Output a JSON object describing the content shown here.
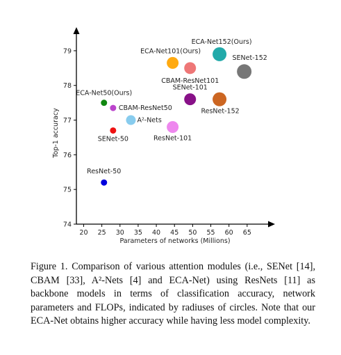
{
  "chart_data": {
    "type": "scatter",
    "title": "",
    "xlabel": "Parameters of networks (Millions)",
    "ylabel": "Top-1 accuracy",
    "xlim": [
      18,
      70
    ],
    "ylim": [
      74,
      79.5
    ],
    "xticks": [
      "20",
      "25",
      "30",
      "35",
      "40",
      "45",
      "50",
      "55",
      "60",
      "65"
    ],
    "yticks": [
      "74",
      "75",
      "76",
      "77",
      "78",
      "79"
    ],
    "bubble_size_meaning": "FLOPs",
    "points": [
      {
        "label": "ResNet-50",
        "x": 25.6,
        "y": 75.2,
        "color": "#0000dd",
        "r": 4.5,
        "lx": 0,
        "ly": -13,
        "anchor": "middle"
      },
      {
        "label": "SENet-50",
        "x": 28.1,
        "y": 76.7,
        "color": "#ee1111",
        "r": 4.5,
        "lx": 0,
        "ly": 15,
        "anchor": "middle"
      },
      {
        "label": "ECA-Net50(Ours)",
        "x": 25.6,
        "y": 77.5,
        "color": "#118811",
        "r": 4.5,
        "lx": 0,
        "ly": -11,
        "anchor": "middle"
      },
      {
        "label": "CBAM-ResNet50",
        "x": 28.1,
        "y": 77.35,
        "color": "#bb44cc",
        "r": 4.5,
        "lx": 8,
        "ly": 3,
        "anchor": "start"
      },
      {
        "label": "A²-Nets",
        "x": 33.0,
        "y": 77.0,
        "color": "#88ccee",
        "r": 7,
        "lx": 9,
        "ly": 3,
        "anchor": "start"
      },
      {
        "label": "ResNet-101",
        "x": 44.5,
        "y": 76.8,
        "color": "#ee88ee",
        "r": 8.5,
        "lx": 0,
        "ly": 19,
        "anchor": "middle"
      },
      {
        "label": "ECA-Net101(Ours)",
        "x": 44.5,
        "y": 78.65,
        "color": "#ffaa11",
        "r": 8.5,
        "lx": -3,
        "ly": -14,
        "anchor": "middle"
      },
      {
        "label": "CBAM-ResNet101",
        "x": 49.3,
        "y": 78.5,
        "color": "#ee7777",
        "r": 8.5,
        "lx": 0,
        "ly": 21,
        "anchor": "middle"
      },
      {
        "label": "SENet-101",
        "x": 49.3,
        "y": 77.6,
        "color": "#881188",
        "r": 8.5,
        "lx": 0,
        "ly": -14,
        "anchor": "middle"
      },
      {
        "label": "ECA-Net152(Ours)",
        "x": 57.4,
        "y": 78.9,
        "color": "#22aaaa",
        "r": 10,
        "lx": 3,
        "ly": -15,
        "anchor": "middle"
      },
      {
        "label": "SENet-152",
        "x": 64.2,
        "y": 78.4,
        "color": "#777777",
        "r": 10.5,
        "lx": 8,
        "ly": -17,
        "anchor": "middle"
      },
      {
        "label": "ResNet-152",
        "x": 57.4,
        "y": 77.6,
        "color": "#cc6622",
        "r": 10,
        "lx": 1,
        "ly": 20,
        "anchor": "middle"
      }
    ]
  },
  "caption": "Figure 1. Comparison of various attention modules (i.e., SENet [14], CBAM [33], A²-Nets [4] and ECA-Net) using ResNets [11] as backbone models in terms of classification accuracy, network parameters and FLOPs, indicated by radiuses of circles. Note that our ECA-Net obtains higher accuracy while having less model complexity."
}
